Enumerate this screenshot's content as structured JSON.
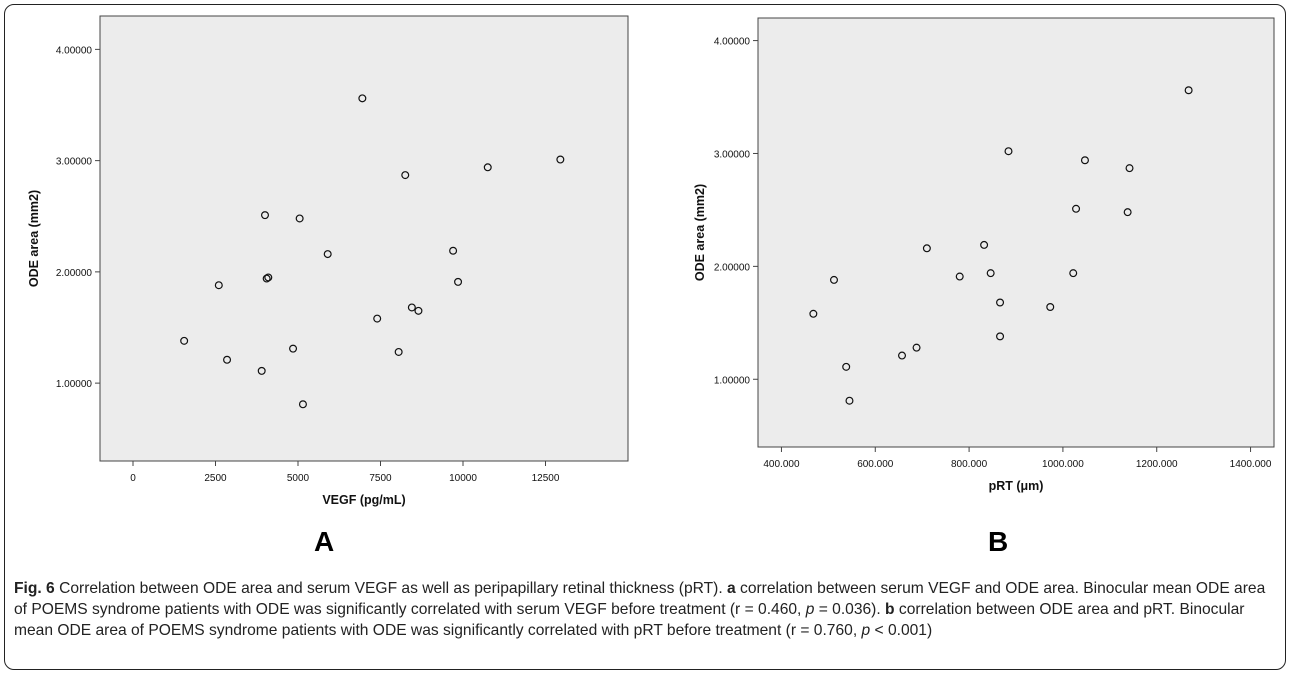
{
  "chart_data": [
    {
      "panel": "A",
      "type": "scatter",
      "xlabel": "VEGF (pg/mL)",
      "ylabel": "ODE area (mm2)",
      "xlim": [
        -1000,
        15000
      ],
      "ylim": [
        0.3,
        4.3
      ],
      "x_ticks": [
        0,
        2500,
        5000,
        7500,
        10000,
        12500
      ],
      "x_tick_labels": [
        "0",
        "2500",
        "5000",
        "7500",
        "10000",
        "12500"
      ],
      "y_ticks": [
        1,
        2,
        3,
        4
      ],
      "y_tick_labels": [
        "1.00000",
        "2.00000",
        "3.00000",
        "4.00000"
      ],
      "points": [
        {
          "x": 1550,
          "y": 1.38
        },
        {
          "x": 2600,
          "y": 1.88
        },
        {
          "x": 2850,
          "y": 1.21
        },
        {
          "x": 3900,
          "y": 1.11
        },
        {
          "x": 4000,
          "y": 2.51
        },
        {
          "x": 4050,
          "y": 1.94
        },
        {
          "x": 4100,
          "y": 1.95
        },
        {
          "x": 4850,
          "y": 1.31
        },
        {
          "x": 5050,
          "y": 2.48
        },
        {
          "x": 5150,
          "y": 0.81
        },
        {
          "x": 5900,
          "y": 2.16
        },
        {
          "x": 6950,
          "y": 3.56
        },
        {
          "x": 7400,
          "y": 1.58
        },
        {
          "x": 8050,
          "y": 1.28
        },
        {
          "x": 8250,
          "y": 2.87
        },
        {
          "x": 8450,
          "y": 1.68
        },
        {
          "x": 8650,
          "y": 1.65
        },
        {
          "x": 9700,
          "y": 2.19
        },
        {
          "x": 9850,
          "y": 1.91
        },
        {
          "x": 10750,
          "y": 2.94
        },
        {
          "x": 12950,
          "y": 3.01
        }
      ],
      "grid": false,
      "background": "#ececec"
    },
    {
      "panel": "B",
      "type": "scatter",
      "xlabel": "pRT (μm)",
      "ylabel": "ODE area (mm2)",
      "xlim": [
        350,
        1450
      ],
      "ylim": [
        0.4,
        4.2
      ],
      "x_ticks": [
        400,
        600,
        800,
        1000,
        1200,
        1400
      ],
      "x_tick_labels": [
        "400.000",
        "600.000",
        "800.000",
        "1000.000",
        "1200.000",
        "1400.000"
      ],
      "y_ticks": [
        1,
        2,
        3,
        4
      ],
      "y_tick_labels": [
        "1.00000",
        "2.00000",
        "3.00000",
        "4.00000"
      ],
      "points": [
        {
          "x": 468,
          "y": 1.58
        },
        {
          "x": 512,
          "y": 1.88
        },
        {
          "x": 538,
          "y": 1.11
        },
        {
          "x": 545,
          "y": 0.81
        },
        {
          "x": 657,
          "y": 1.21
        },
        {
          "x": 688,
          "y": 1.28
        },
        {
          "x": 710,
          "y": 2.16
        },
        {
          "x": 780,
          "y": 1.91
        },
        {
          "x": 832,
          "y": 2.19
        },
        {
          "x": 846,
          "y": 1.94
        },
        {
          "x": 866,
          "y": 1.68
        },
        {
          "x": 866,
          "y": 1.38
        },
        {
          "x": 884,
          "y": 3.02
        },
        {
          "x": 973,
          "y": 1.64
        },
        {
          "x": 1022,
          "y": 1.94
        },
        {
          "x": 1028,
          "y": 2.51
        },
        {
          "x": 1047,
          "y": 2.94
        },
        {
          "x": 1138,
          "y": 2.48
        },
        {
          "x": 1142,
          "y": 2.87
        },
        {
          "x": 1268,
          "y": 3.56
        }
      ],
      "grid": false,
      "background": "#ececec"
    }
  ],
  "panels": {
    "a_label": "A",
    "b_label": "B"
  },
  "caption": {
    "fig_label": "Fig. 6",
    "s1": " Correlation between ODE area and serum VEGF as well as peripapillary retinal thickness (pRT). ",
    "a": "a",
    "s2": " correlation between serum VEGF and ODE area. Binocular mean ODE area of POEMS syndrome patients with ODE was significantly correlated with serum VEGF before treatment (r = 0.460, ",
    "p1": "p",
    "s3": " = 0.036). ",
    "b": "b",
    "s4": " correlation between ODE area and pRT. Binocular mean ODE area of POEMS syndrome patients with ODE was significantly correlated with pRT before treatment (r = 0.760, ",
    "p2": "p",
    "s5": " < 0.001)"
  }
}
